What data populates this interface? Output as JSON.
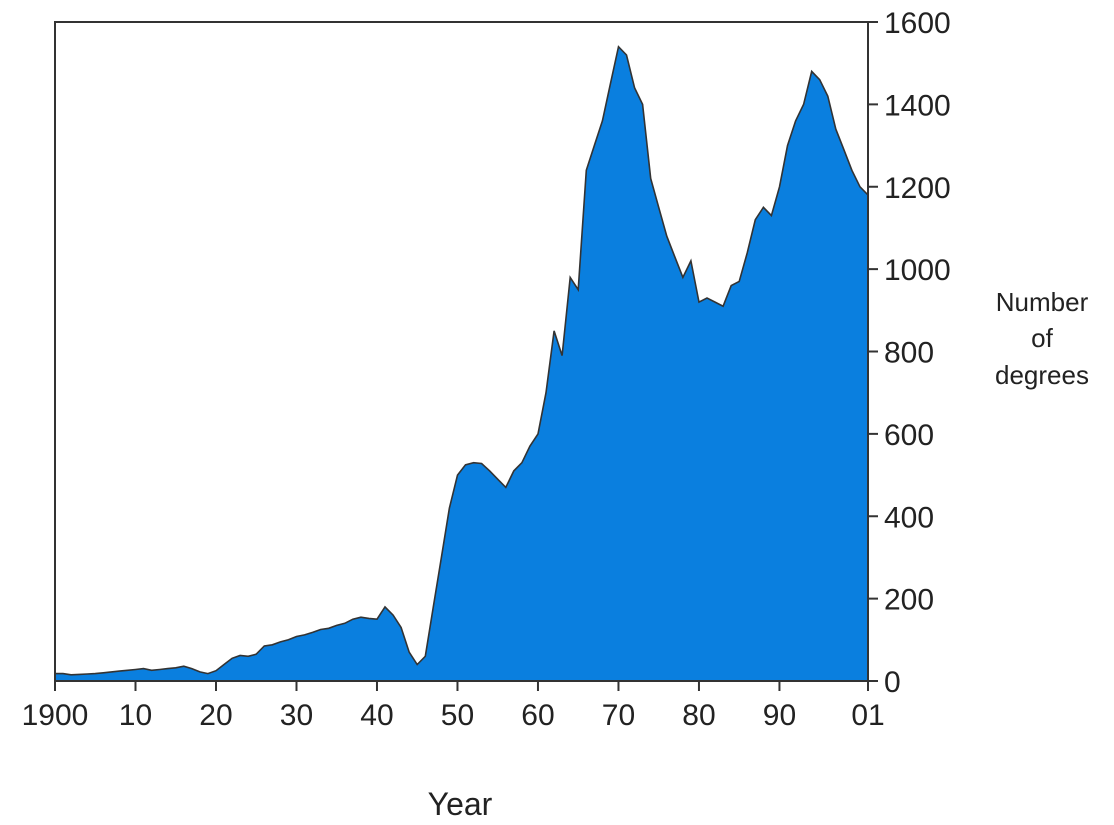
{
  "chart_data": {
    "type": "area",
    "title": "",
    "xlabel": "Year",
    "ylabel_lines": [
      "Number",
      "of",
      "degrees"
    ],
    "xlim": [
      1900,
      2001
    ],
    "ylim": [
      0,
      1600
    ],
    "x_ticks": [
      1900,
      1910,
      1920,
      1930,
      1940,
      1950,
      1960,
      1970,
      1980,
      1990,
      2001
    ],
    "x_tick_labels": [
      "1900",
      "10",
      "20",
      "30",
      "40",
      "50",
      "60",
      "70",
      "80",
      "90",
      "01"
    ],
    "y_ticks": [
      0,
      200,
      400,
      600,
      800,
      1000,
      1200,
      1400,
      1600
    ],
    "y_tick_labels": [
      "0",
      "200",
      "400",
      "600",
      "800",
      "1000",
      "1200",
      "1400",
      "1600"
    ],
    "y_axis_side": "right",
    "grid": false,
    "fill_color": "#0A7FDF",
    "line_color": "#333333",
    "series": [
      {
        "x": [
          1900,
          1901,
          1902,
          1903,
          1904,
          1905,
          1906,
          1907,
          1908,
          1909,
          1910,
          1911,
          1912,
          1913,
          1914,
          1915,
          1916,
          1917,
          1918,
          1919,
          1920,
          1921,
          1922,
          1923,
          1924,
          1925,
          1926,
          1927,
          1928,
          1929,
          1930,
          1931,
          1932,
          1933,
          1934,
          1935,
          1936,
          1937,
          1938,
          1939,
          1940,
          1941,
          1942,
          1943,
          1944,
          1945,
          1946,
          1947,
          1948,
          1949,
          1950,
          1951,
          1952,
          1953,
          1954,
          1955,
          1956,
          1957,
          1958,
          1959,
          1960,
          1961,
          1962,
          1963,
          1964,
          1965,
          1966,
          1967,
          1968,
          1969,
          1970,
          1971,
          1972,
          1973,
          1974,
          1975,
          1976,
          1977,
          1978,
          1979,
          1980,
          1981,
          1982,
          1983,
          1984,
          1985,
          1986,
          1987,
          1988,
          1989,
          1990,
          1991,
          1992,
          1993,
          1994,
          1995,
          1996,
          1997,
          1998,
          1999,
          2000,
          2001
        ],
        "y": [
          18,
          18,
          15,
          16,
          17,
          18,
          20,
          22,
          24,
          26,
          28,
          30,
          26,
          28,
          30,
          32,
          36,
          30,
          22,
          18,
          25,
          40,
          55,
          62,
          60,
          65,
          85,
          88,
          95,
          100,
          108,
          112,
          118,
          125,
          128,
          135,
          140,
          150,
          155,
          152,
          150,
          180,
          160,
          130,
          70,
          40,
          60,
          180,
          300,
          420,
          500,
          525,
          530,
          528,
          510,
          490,
          470,
          510,
          530,
          570,
          600,
          700,
          850,
          790,
          980,
          950,
          1240,
          1300,
          1360,
          1450,
          1540,
          1520,
          1440,
          1400,
          1220,
          1150,
          1080,
          1030,
          980,
          1020,
          920,
          930,
          920,
          910,
          960,
          970,
          1040,
          1120,
          1150,
          1130,
          1200,
          1300,
          1360,
          1400,
          1480,
          1460,
          1420,
          1340,
          1290,
          1240,
          1200,
          1180
        ]
      }
    ]
  }
}
